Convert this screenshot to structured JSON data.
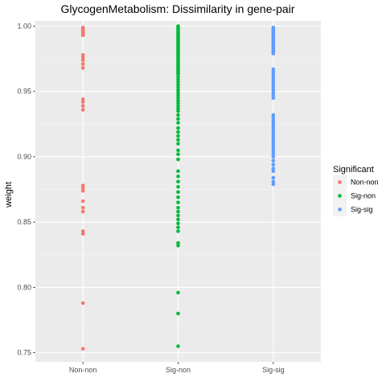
{
  "chart_data": {
    "type": "scatter",
    "title": "GlycogenMetabolism: Dissimilarity in gene-pair",
    "xlabel": "",
    "ylabel": "weight",
    "categories": [
      "Non-non",
      "Sig-non",
      "Sig-sig"
    ],
    "ylim": [
      0.743,
      1.004
    ],
    "yticks": [
      0.75,
      0.8,
      0.85,
      0.9,
      0.95,
      1.0
    ],
    "ytick_labels": [
      "0.75",
      "0.80",
      "0.85",
      "0.90",
      "0.95",
      "1.00"
    ],
    "grid": true,
    "legend": {
      "title": "Significant",
      "placement": "right",
      "entries": [
        "Non-non",
        "Sig-non",
        "Sig-sig"
      ]
    },
    "series": [
      {
        "name": "Non-non",
        "color": "#F8766D",
        "category": "Non-non",
        "values": [
          0.999,
          0.998,
          0.997,
          0.996,
          0.995,
          0.994,
          0.993,
          0.978,
          0.976,
          0.974,
          0.971,
          0.968,
          0.944,
          0.942,
          0.939,
          0.936,
          0.878,
          0.876,
          0.874,
          0.866,
          0.861,
          0.858,
          0.843,
          0.841,
          0.788,
          0.753
        ]
      },
      {
        "name": "Sig-non",
        "color": "#00BA38",
        "category": "Sig-non",
        "values": [
          1.0,
          0.999,
          0.998,
          0.997,
          0.996,
          0.995,
          0.994,
          0.993,
          0.992,
          0.991,
          0.99,
          0.989,
          0.988,
          0.987,
          0.986,
          0.985,
          0.984,
          0.983,
          0.982,
          0.981,
          0.98,
          0.979,
          0.978,
          0.977,
          0.976,
          0.975,
          0.974,
          0.973,
          0.972,
          0.971,
          0.97,
          0.969,
          0.968,
          0.967,
          0.966,
          0.965,
          0.964,
          0.963,
          0.961,
          0.959,
          0.957,
          0.955,
          0.953,
          0.951,
          0.949,
          0.947,
          0.945,
          0.943,
          0.941,
          0.939,
          0.937,
          0.935,
          0.932,
          0.929,
          0.926,
          0.922,
          0.919,
          0.916,
          0.913,
          0.91,
          0.905,
          0.902,
          0.898,
          0.889,
          0.885,
          0.881,
          0.877,
          0.873,
          0.869,
          0.865,
          0.861,
          0.858,
          0.855,
          0.852,
          0.849,
          0.846,
          0.843,
          0.834,
          0.832,
          0.796,
          0.78,
          0.755
        ]
      },
      {
        "name": "Sig-sig",
        "color": "#619CFF",
        "category": "Sig-sig",
        "values": [
          0.999,
          0.998,
          0.997,
          0.996,
          0.995,
          0.994,
          0.993,
          0.992,
          0.991,
          0.99,
          0.989,
          0.988,
          0.987,
          0.986,
          0.985,
          0.984,
          0.983,
          0.982,
          0.981,
          0.98,
          0.979,
          0.967,
          0.965,
          0.963,
          0.961,
          0.959,
          0.957,
          0.955,
          0.953,
          0.951,
          0.949,
          0.947,
          0.945,
          0.932,
          0.93,
          0.928,
          0.926,
          0.924,
          0.922,
          0.92,
          0.918,
          0.916,
          0.914,
          0.912,
          0.91,
          0.908,
          0.906,
          0.904,
          0.902,
          0.9,
          0.897,
          0.894,
          0.891,
          0.889,
          0.884,
          0.881,
          0.879
        ]
      }
    ]
  }
}
